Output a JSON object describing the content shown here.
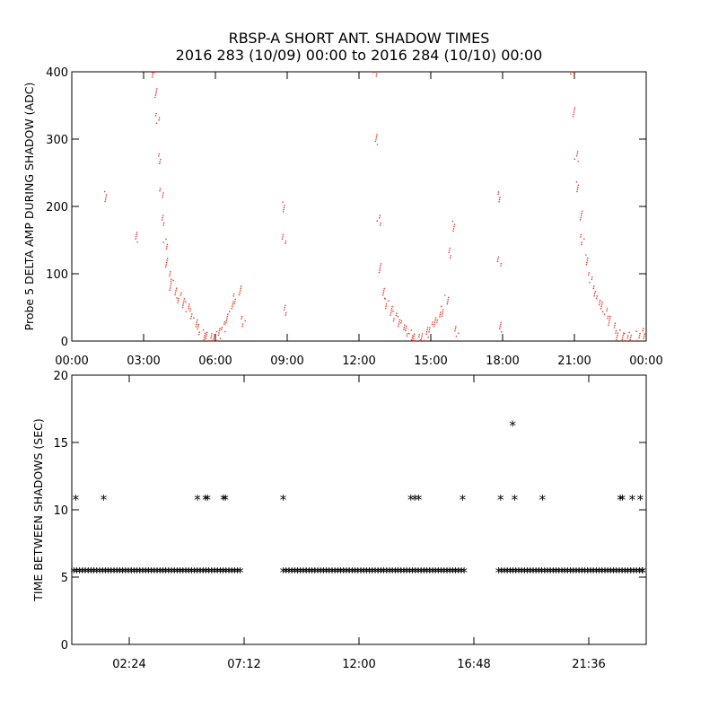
{
  "title_line1": "RBSP-A SHORT ANT. SHADOW TIMES",
  "title_line2": "2016 283 (10/09) 00:00 to 2016 284 (10/10) 00:00",
  "colors": {
    "trace": "#e8301c",
    "star": "#000000"
  },
  "chart_data": [
    {
      "type": "scatter",
      "ylabel": "Probe 5 DELTA AMP DURING SHADOW (ADC)",
      "xlim": [
        "00:00",
        "24:00"
      ],
      "ylim": [
        0,
        400
      ],
      "xticks": [
        "00:00",
        "03:00",
        "06:00",
        "09:00",
        "12:00",
        "15:00",
        "18:00",
        "21:00",
        "00:00"
      ],
      "yticks": [
        "0",
        "100",
        "200",
        "300",
        "400"
      ],
      "series": [
        {
          "points": [
            [
              "01:27",
              214
            ],
            [
              "02:40",
              155
            ],
            [
              "03:25",
              400
            ],
            [
              "03:30",
              370
            ],
            [
              "03:35",
              330
            ],
            [
              "03:40",
              270
            ],
            [
              "03:45",
              220
            ],
            [
              "03:50",
              180
            ],
            [
              "03:55",
              145
            ],
            [
              "04:00",
              115
            ],
            [
              "04:05",
              95
            ],
            [
              "04:10",
              82
            ],
            [
              "04:20",
              72
            ],
            [
              "04:30",
              65
            ],
            [
              "04:40",
              58
            ],
            [
              "04:50",
              50
            ],
            [
              "05:00",
              40
            ],
            [
              "05:10",
              28
            ],
            [
              "05:20",
              18
            ],
            [
              "05:30",
              10
            ],
            [
              "05:40",
              5
            ],
            [
              "05:50",
              3
            ],
            [
              "06:00",
              6
            ],
            [
              "06:10",
              12
            ],
            [
              "06:20",
              22
            ],
            [
              "06:30",
              35
            ],
            [
              "06:40",
              50
            ],
            [
              "06:50",
              62
            ],
            [
              "07:00",
              75
            ],
            [
              "07:10",
              30
            ],
            [
              "08:50",
              200
            ],
            [
              "08:52",
              150
            ],
            [
              "08:55",
              45
            ],
            [
              "12:40",
              400
            ],
            [
              "12:45",
              300
            ],
            [
              "12:50",
              180
            ],
            [
              "12:55",
              110
            ],
            [
              "13:00",
              70
            ],
            [
              "13:10",
              55
            ],
            [
              "13:20",
              45
            ],
            [
              "13:30",
              38
            ],
            [
              "13:40",
              30
            ],
            [
              "13:50",
              22
            ],
            [
              "14:00",
              14
            ],
            [
              "14:10",
              8
            ],
            [
              "14:20",
              4
            ],
            [
              "14:30",
              3
            ],
            [
              "14:40",
              6
            ],
            [
              "14:50",
              12
            ],
            [
              "15:00",
              20
            ],
            [
              "15:10",
              28
            ],
            [
              "15:20",
              36
            ],
            [
              "15:30",
              45
            ],
            [
              "15:40",
              60
            ],
            [
              "15:50",
              130
            ],
            [
              "15:55",
              170
            ],
            [
              "16:05",
              15
            ],
            [
              "17:50",
              215
            ],
            [
              "17:52",
              120
            ],
            [
              "17:55",
              20
            ],
            [
              "20:55",
              400
            ],
            [
              "21:00",
              340
            ],
            [
              "21:05",
              275
            ],
            [
              "21:10",
              230
            ],
            [
              "21:15",
              185
            ],
            [
              "21:20",
              150
            ],
            [
              "21:30",
              120
            ],
            [
              "21:40",
              95
            ],
            [
              "21:50",
              75
            ],
            [
              "22:00",
              62
            ],
            [
              "22:10",
              50
            ],
            [
              "22:20",
              40
            ],
            [
              "22:30",
              30
            ],
            [
              "22:40",
              20
            ],
            [
              "22:50",
              10
            ],
            [
              "23:00",
              4
            ],
            [
              "23:10",
              3
            ],
            [
              "23:20",
              5
            ],
            [
              "23:40",
              8
            ],
            [
              "23:55",
              12
            ]
          ]
        }
      ]
    },
    {
      "type": "scatter",
      "ylabel": "TIME BETWEEN SHADOWS (SEC)",
      "xlim": [
        "00:00",
        "24:00"
      ],
      "ylim": [
        0,
        20
      ],
      "xticks": [
        "02:24",
        "07:12",
        "12:00",
        "16:48",
        "21:36"
      ],
      "yticks": [
        "0",
        "5",
        "10",
        "15",
        "20"
      ],
      "marker": "*",
      "series": [
        {
          "points": [
            [
              "00:10",
              10.8
            ],
            [
              "01:20",
              10.8
            ],
            [
              "05:15",
              10.8
            ],
            [
              "05:35",
              10.8
            ],
            [
              "05:40",
              10.8
            ],
            [
              "06:20",
              10.8
            ],
            [
              "06:25",
              10.8
            ],
            [
              "08:50",
              10.8
            ],
            [
              "14:10",
              10.8
            ],
            [
              "14:20",
              10.8
            ],
            [
              "14:30",
              10.8
            ],
            [
              "16:20",
              10.8
            ],
            [
              "17:55",
              10.8
            ],
            [
              "18:25",
              16.3
            ],
            [
              "18:30",
              10.8
            ],
            [
              "19:40",
              10.8
            ],
            [
              "22:55",
              10.8
            ],
            [
              "23:00",
              10.8
            ],
            [
              "23:25",
              10.8
            ],
            [
              "23:45",
              10.8
            ]
          ],
          "runs": [
            {
              "from": "00:05",
              "to": "07:05",
              "value": 5.4
            },
            {
              "from": "08:50",
              "to": "16:30",
              "value": 5.4
            },
            {
              "from": "17:50",
              "to": "24:00",
              "value": 5.4
            }
          ]
        }
      ]
    }
  ]
}
